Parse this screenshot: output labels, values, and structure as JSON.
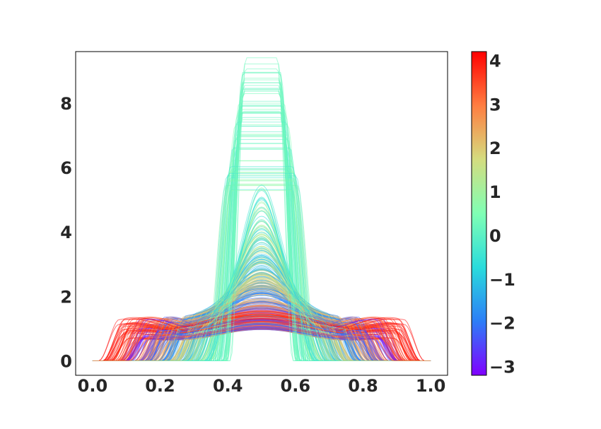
{
  "chart_data": {
    "type": "line",
    "title": "",
    "xlabel": "",
    "ylabel": "",
    "xlim": [
      -0.05,
      1.05
    ],
    "ylim": [
      -0.45,
      9.6
    ],
    "xticks": [
      0.0,
      0.2,
      0.4,
      0.6,
      0.8,
      1.0
    ],
    "xtick_labels": [
      "0.0",
      "0.2",
      "0.4",
      "0.6",
      "0.8",
      "1.0"
    ],
    "yticks": [
      0,
      2,
      4,
      6,
      8
    ],
    "ytick_labels": [
      "0",
      "2",
      "4",
      "6",
      "8"
    ],
    "grid": false,
    "legend": "none",
    "series_style": "many thin translucent curves, each a symmetric plateau centred at x = 0.5, colored by a continuous parameter; narrow tall curves at parameter near 0, wide flat curves at both extremes",
    "series_summary": {
      "count": 400,
      "x_center": 0.5,
      "narrowest": {
        "parameter": 0.2,
        "peak": 9.2,
        "support": [
          0.4,
          0.6
        ]
      },
      "widest": {
        "parameter": -3.0,
        "peak": 1.0,
        "support": [
          0.0,
          1.0
        ]
      },
      "shoulder_peak_min": 1.1,
      "shoulder_peak_max": 2.3
    },
    "colorbar": {
      "colormap": "rainbow",
      "range": [
        -3.2,
        4.2
      ],
      "ticks": [
        -3,
        -2,
        -1,
        0,
        1,
        2,
        3,
        4
      ],
      "tick_labels": [
        "−3",
        "−2",
        "−1",
        "0",
        "1",
        "2",
        "3",
        "4"
      ],
      "colors": [
        "#8000ff",
        "#2c7ef7",
        "#2adcdc",
        "#80ffb4",
        "#d4dc7f",
        "#ff7e41",
        "#ff0000"
      ]
    }
  }
}
